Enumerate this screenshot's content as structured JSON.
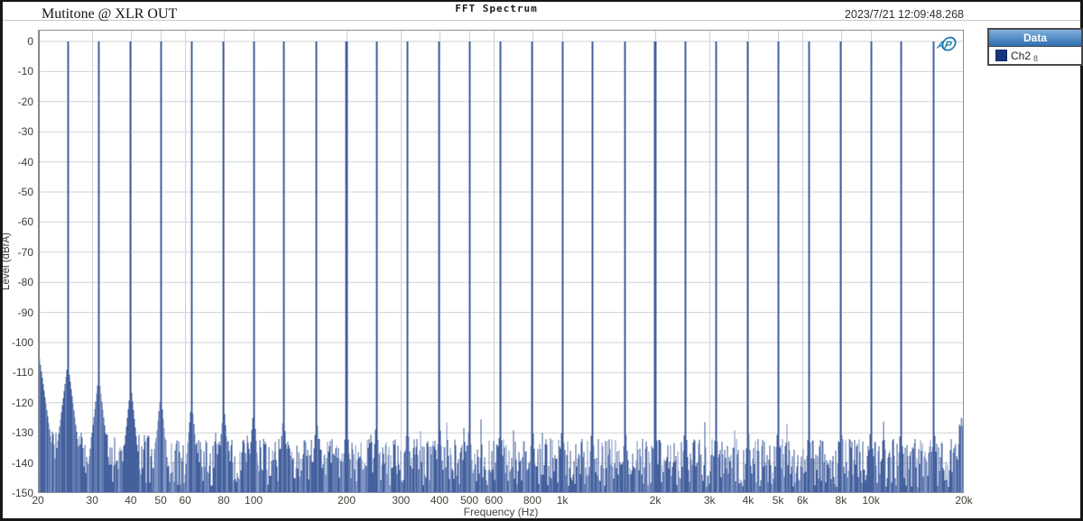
{
  "window": {
    "title": "FFT Spectrum"
  },
  "header": {
    "trace_label": "Mutitone @ XLR OUT",
    "timestamp": "2023/7/21 12:09:48.268"
  },
  "legend": {
    "title": "Data",
    "entries": [
      {
        "label": "Ch2",
        "sub": "8",
        "color": "#16357e"
      }
    ]
  },
  "logo": {
    "text": "AP",
    "color": "#1478ad"
  },
  "chart_data": {
    "type": "area",
    "title": "FFT Spectrum",
    "xlabel": "Frequency (Hz)",
    "ylabel": "Level (dBrA)",
    "x_scale": "log",
    "xlim_hz": [
      20,
      20000
    ],
    "ylim_db": [
      -150,
      0
    ],
    "grid": true,
    "grid_color": "#cfd2d6",
    "plot_border_color": "#8a929c",
    "y_ticks_db": [
      0,
      -10,
      -20,
      -30,
      -40,
      -50,
      -60,
      -70,
      -80,
      -90,
      -100,
      -110,
      -120,
      -130,
      -140,
      -150
    ],
    "x_ticks": [
      {
        "hz": 20,
        "label": "20"
      },
      {
        "hz": 30,
        "label": "30"
      },
      {
        "hz": 40,
        "label": "40"
      },
      {
        "hz": 50,
        "label": "50"
      },
      {
        "hz": 60,
        "label": "60"
      },
      {
        "hz": 80,
        "label": "80"
      },
      {
        "hz": 100,
        "label": "100"
      },
      {
        "hz": 200,
        "label": "200"
      },
      {
        "hz": 300,
        "label": "300"
      },
      {
        "hz": 400,
        "label": "400"
      },
      {
        "hz": 500,
        "label": "500"
      },
      {
        "hz": 600,
        "label": "600"
      },
      {
        "hz": 800,
        "label": "800"
      },
      {
        "hz": 1000,
        "label": "1k"
      },
      {
        "hz": 2000,
        "label": "2k"
      },
      {
        "hz": 3000,
        "label": "3k"
      },
      {
        "hz": 4000,
        "label": "4k"
      },
      {
        "hz": 5000,
        "label": "5k"
      },
      {
        "hz": 6000,
        "label": "6k"
      },
      {
        "hz": 8000,
        "label": "8k"
      },
      {
        "hz": 10000,
        "label": "10k"
      },
      {
        "hz": 20000,
        "label": "20k"
      }
    ],
    "series": [
      {
        "name": "Ch2",
        "color_dark": "#44619e",
        "color_light": "#8094c3",
        "tone_frequencies_hz": [
          20,
          25,
          31.5,
          40,
          50,
          63,
          80,
          100,
          125,
          160,
          200,
          250,
          315,
          400,
          500,
          630,
          800,
          1000,
          1250,
          1600,
          2000,
          2500,
          3150,
          4000,
          5000,
          6300,
          8000,
          10000,
          12500,
          16000
        ],
        "tone_peak_db": 0,
        "noise_floor_typical_db": -140,
        "noise_floor_range_db": [
          -148,
          -126
        ],
        "low_freq_floor_lift_db": 4,
        "right_edge_rise_to_db": -128,
        "seed": 911
      }
    ]
  }
}
